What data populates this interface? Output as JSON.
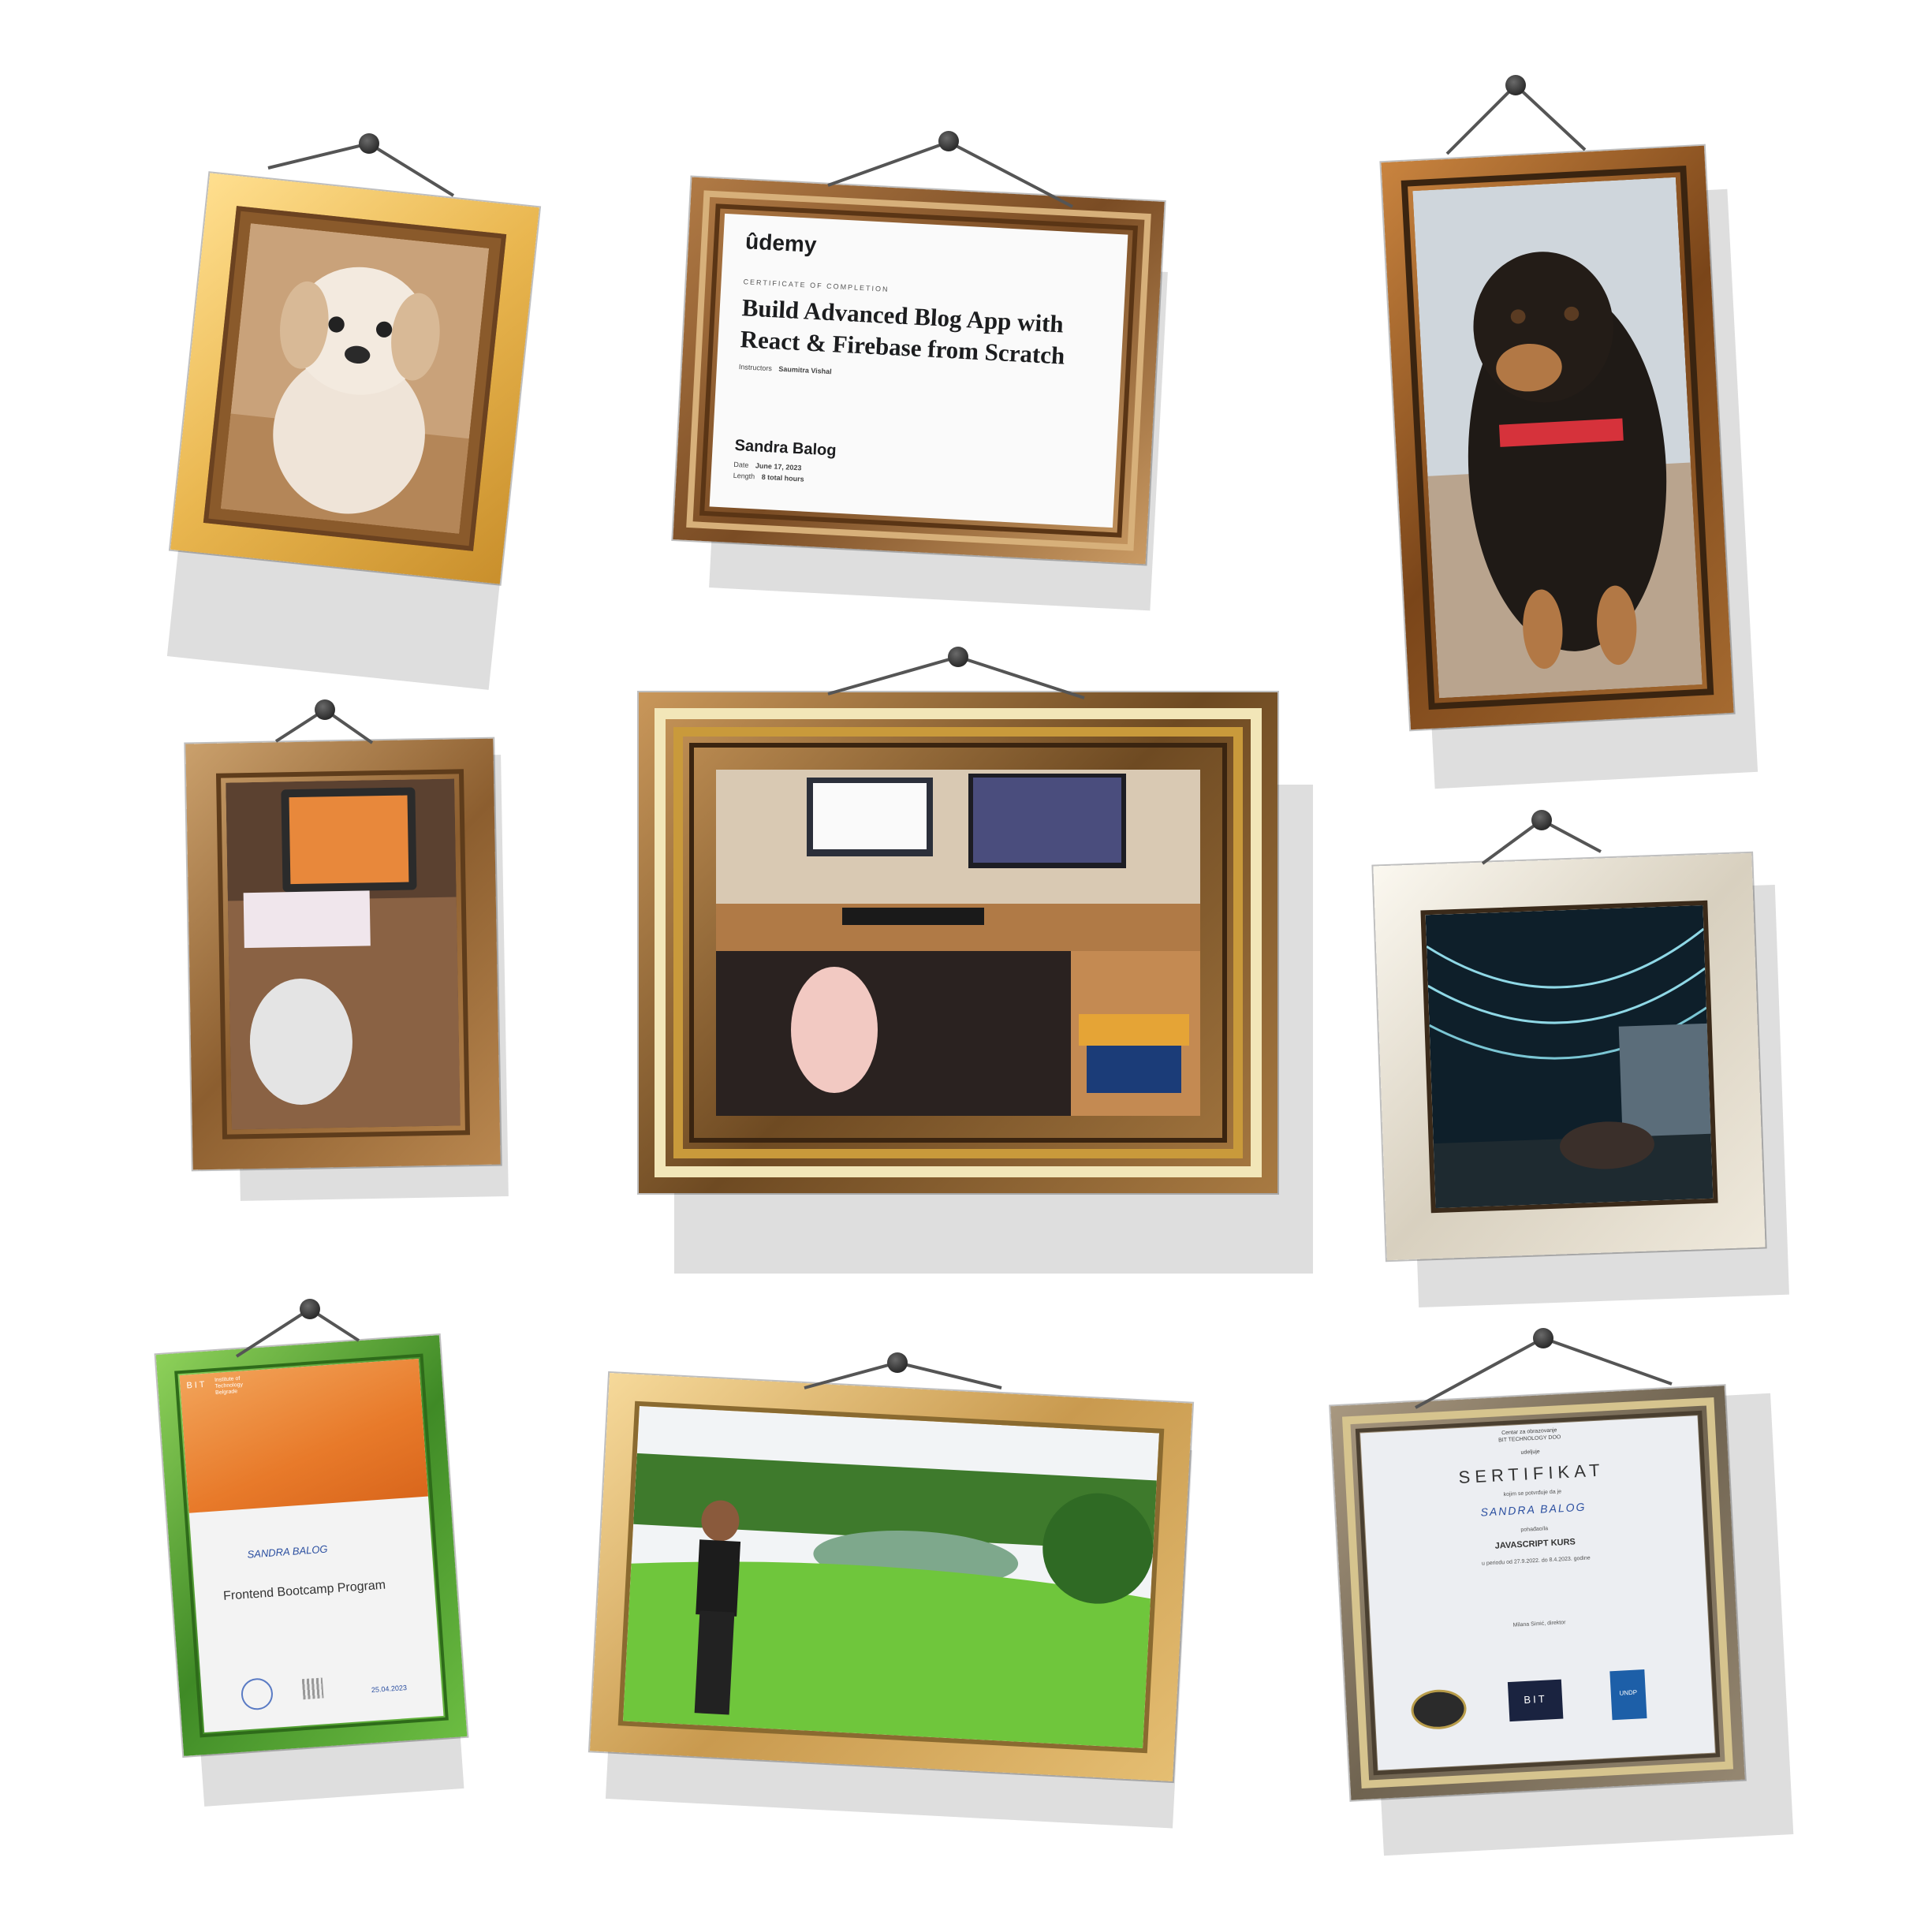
{
  "udemy_cert": {
    "logo": "ûdemy",
    "eyebrow": "CERTIFICATE OF COMPLETION",
    "title_line1": "Build Advanced Blog App with",
    "title_line2": "React & Firebase from Scratch",
    "instructors_label": "Instructors",
    "instructor_name": "Saumitra Vishal",
    "recipient": "Sandra Balog",
    "date_label": "Date",
    "date_value": "June 17, 2023",
    "length_label": "Length",
    "length_value": "8 total hours"
  },
  "bit_cert": {
    "logo": "BIT",
    "org_line1": "Institute of",
    "org_line2": "Technology",
    "org_line3": "Belgrade",
    "recipient": "SANDRA BALOG",
    "program": "Frontend Bootcamp Program",
    "date": "25.04.2023"
  },
  "sertifikat": {
    "org_line1": "Centar za obrazovanje",
    "org_line2": "BIT TECHNOLOGY DOO",
    "awards": "udeljuje",
    "title": "SERTIFIKAT",
    "confirms": "kojim se potvrđuje da je",
    "recipient": "SANDRA BALOG",
    "completed": "pohađao/la",
    "course": "JAVASCRIPT KURS",
    "period": "u periodu od 27.9.2022. do 8.4.2023. godine",
    "signer": "Milana Simić, direktor",
    "logo_bit": "BIT",
    "logo_undp": "UNDP"
  },
  "colors": {
    "frame_gold": "#f2c86a",
    "frame_brown": "#8a5a2b",
    "frame_green": "#5aa53a",
    "frame_cream": "#efe9dc",
    "frame_taupe": "#8a7e6c",
    "orange": "#e87a2a"
  }
}
